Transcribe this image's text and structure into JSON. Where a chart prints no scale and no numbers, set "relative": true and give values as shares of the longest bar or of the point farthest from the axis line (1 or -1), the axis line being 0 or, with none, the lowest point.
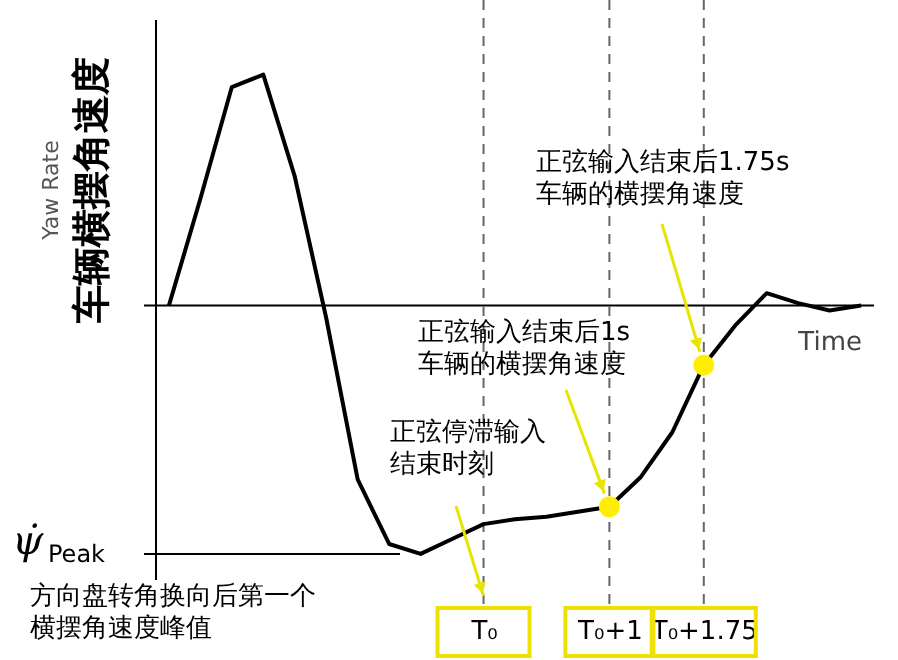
{
  "chart_data": {
    "type": "line",
    "relative": true,
    "xlabel": "Time",
    "ylabel": "Yaw Rate\n车辆横摆角速度",
    "categories": [
      null,
      null,
      null,
      null,
      null,
      null,
      null,
      null,
      null,
      null,
      "T₀",
      null,
      null,
      null,
      "T₀+1",
      null,
      null,
      "T₀+1.75",
      null,
      null,
      null,
      null,
      null
    ],
    "grid": false,
    "series": [
      {
        "color": "#000000",
        "marker": "none",
        "line_style": "solid",
        "values": [
          0,
          0.43,
          0.88,
          0.93,
          0.52,
          -0.05,
          -0.7,
          -0.96,
          -1,
          -0.94,
          -0.88,
          -0.86,
          -0.85,
          -0.83,
          -0.81,
          -0.69,
          -0.51,
          -0.24,
          -0.08,
          0.05,
          0.01,
          -0.02,
          0
        ]
      },
      {
        "type": "scatter",
        "color": "#ffee00",
        "marker": "circle",
        "x": [
          "T₀+1",
          "T₀+1.75"
        ],
        "values": [
          -0.81,
          -0.24
        ]
      }
    ],
    "ref_lines": [
      {
        "axis": "x",
        "value": "T₀",
        "color": "#666666",
        "line_style": "dashed"
      },
      {
        "axis": "x",
        "value": "T₀+1",
        "color": "#666666",
        "line_style": "dashed"
      },
      {
        "axis": "x",
        "value": "T₀+1.75",
        "color": "#666666",
        "line_style": "dashed"
      },
      {
        "axis": "y",
        "value": -1,
        "label": "ψ̇$_{Peak}$",
        "color": "#000000"
      }
    ],
    "annotations": [
      {
        "text": "正弦停滞输入结束时刻",
        "x": "T₀"
      },
      {
        "text": "正弦输入结束后1s车辆的横摆角速度",
        "x": "T₀+1",
        "y": -0.81
      },
      {
        "text": "正弦输入结束后1.75s车辆的横摆角速度",
        "x": "T₀+1.75",
        "y": -0.24
      },
      "方向盘转角换向后第一个横摆角速度峰值"
    ]
  }
}
